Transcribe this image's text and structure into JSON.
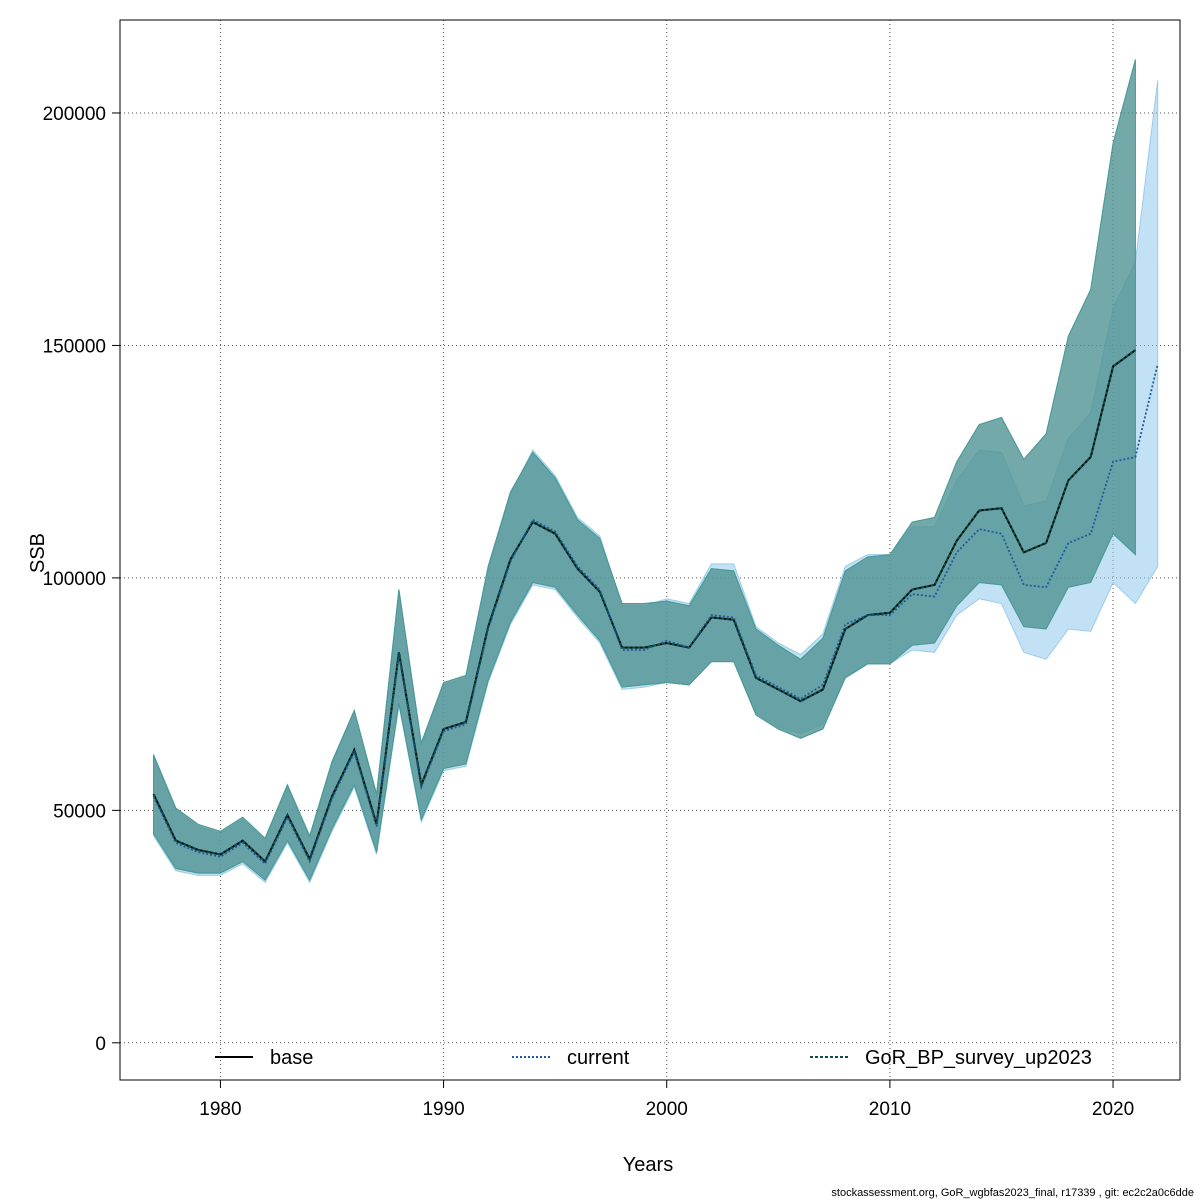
{
  "chart_data": {
    "type": "line",
    "xlabel": "Years",
    "ylabel": "SSB",
    "xlim": [
      1975.5,
      2023
    ],
    "ylim": [
      -8000,
      220000
    ],
    "x_ticks": [
      1980,
      1990,
      2000,
      2010,
      2020
    ],
    "y_ticks": [
      0,
      50000,
      100000,
      150000,
      200000
    ],
    "x_tick_labels": [
      "1980",
      "1990",
      "2000",
      "2010",
      "2020"
    ],
    "y_tick_labels": [
      "0",
      "50000",
      "100000",
      "150000",
      "200000"
    ],
    "grid": true,
    "legend_position": "bottom",
    "footer": "stockassessment.org, GoR_wgbfas2023_final, r17339 , git: ec2c2a0c6dde",
    "series": [
      {
        "name": "base",
        "color": "#000000",
        "dash": "solid",
        "band_color": "#7f7f7f",
        "years": [
          1977,
          1978,
          1979,
          1980,
          1981,
          1982,
          1983,
          1984,
          1985,
          1986,
          1987,
          1988,
          1989,
          1990,
          1991,
          1992,
          1993,
          1994,
          1995,
          1996,
          1997,
          1998,
          1999,
          2000,
          2001,
          2002,
          2003,
          2004,
          2005,
          2006,
          2007,
          2008,
          2009,
          2010,
          2011,
          2012,
          2013,
          2014,
          2015,
          2016,
          2017,
          2018,
          2019,
          2020,
          2021
        ],
        "values": [
          53500,
          43500,
          41500,
          40500,
          43500,
          39000,
          49000,
          39500,
          53000,
          63000,
          47000,
          84000,
          55500,
          67500,
          69000,
          89500,
          104000,
          112000,
          109500,
          102000,
          97000,
          85000,
          85000,
          86000,
          85000,
          91500,
          91000,
          78500,
          76000,
          73500,
          76000,
          89000,
          92000,
          92500,
          97500,
          98500,
          108000,
          114500,
          115000,
          105500,
          107500,
          121000,
          126000,
          145500,
          149000
        ],
        "upper": [
          62000,
          50500,
          47000,
          45500,
          48500,
          44000,
          55500,
          44500,
          60500,
          71500,
          53500,
          97500,
          64500,
          77500,
          79000,
          102500,
          118500,
          127000,
          121500,
          112500,
          108500,
          94500,
          94500,
          95000,
          94000,
          102000,
          101500,
          89000,
          85500,
          82500,
          87000,
          101500,
          104500,
          105000,
          112000,
          113000,
          125000,
          133000,
          134500,
          125500,
          131000,
          152000,
          162000,
          193500,
          211500
        ],
        "lower": [
          45000,
          37500,
          36500,
          36500,
          39000,
          35000,
          43500,
          35000,
          46000,
          55500,
          41000,
          73000,
          48000,
          59000,
          60000,
          78000,
          90500,
          99000,
          98000,
          92000,
          86500,
          76500,
          77000,
          77500,
          77000,
          82000,
          82000,
          70500,
          67500,
          65500,
          67500,
          78500,
          81500,
          81500,
          85500,
          86000,
          94000,
          99000,
          98500,
          89500,
          89000,
          98000,
          99000,
          109500,
          105000
        ]
      },
      {
        "name": "current",
        "color": "#1f5a9c",
        "dash": "dotted",
        "band_color": "#87c4ea",
        "years": [
          1977,
          1978,
          1979,
          1980,
          1981,
          1982,
          1983,
          1984,
          1985,
          1986,
          1987,
          1988,
          1989,
          1990,
          1991,
          1992,
          1993,
          1994,
          1995,
          1996,
          1997,
          1998,
          1999,
          2000,
          2001,
          2002,
          2003,
          2004,
          2005,
          2006,
          2007,
          2008,
          2009,
          2010,
          2011,
          2012,
          2013,
          2014,
          2015,
          2016,
          2017,
          2018,
          2019,
          2020,
          2021,
          2022
        ],
        "values": [
          53000,
          43000,
          41000,
          40000,
          43000,
          38500,
          48500,
          39000,
          52500,
          62500,
          46500,
          83500,
          55000,
          67000,
          68500,
          89000,
          103500,
          112500,
          110000,
          102500,
          97500,
          84500,
          84500,
          86500,
          85000,
          92000,
          91500,
          79000,
          76500,
          74000,
          77000,
          90000,
          92000,
          92000,
          96500,
          96000,
          105500,
          110500,
          109500,
          98500,
          98000,
          107500,
          109500,
          125000,
          126000,
          146000
        ],
        "upper": [
          61500,
          50000,
          46500,
          45000,
          48000,
          43500,
          55000,
          44000,
          60000,
          71000,
          53000,
          97000,
          64000,
          77000,
          78500,
          102000,
          118000,
          127500,
          122000,
          113000,
          109000,
          94000,
          94000,
          95500,
          94500,
          103000,
          103000,
          89500,
          86000,
          83500,
          88000,
          102500,
          105000,
          105000,
          111000,
          111000,
          121000,
          127500,
          127000,
          115500,
          116500,
          130000,
          135500,
          158000,
          168000,
          207000
        ],
        "lower": [
          44500,
          37000,
          36000,
          36000,
          38500,
          34500,
          43000,
          34500,
          45500,
          55000,
          40500,
          72500,
          47500,
          58500,
          59500,
          77500,
          90000,
          98500,
          97500,
          91500,
          86000,
          76000,
          76500,
          77500,
          77000,
          82000,
          82000,
          71000,
          68000,
          66500,
          68500,
          79000,
          81500,
          81500,
          84500,
          84000,
          92000,
          95500,
          94500,
          84000,
          82500,
          89000,
          88500,
          99000,
          94500,
          102500
        ]
      },
      {
        "name": "GoR_BP_survey_up2023",
        "color": "#0b4f4a",
        "dash": "dashed",
        "band_color": "#3a9d9a",
        "years": [
          1977,
          1978,
          1979,
          1980,
          1981,
          1982,
          1983,
          1984,
          1985,
          1986,
          1987,
          1988,
          1989,
          1990,
          1991,
          1992,
          1993,
          1994,
          1995,
          1996,
          1997,
          1998,
          1999,
          2000,
          2001,
          2002,
          2003,
          2004,
          2005,
          2006,
          2007,
          2008,
          2009,
          2010,
          2011,
          2012,
          2013,
          2014,
          2015,
          2016,
          2017,
          2018,
          2019,
          2020,
          2021
        ],
        "values": [
          53500,
          43500,
          41500,
          40500,
          43500,
          39000,
          49000,
          39500,
          53000,
          63000,
          47000,
          84000,
          55500,
          67500,
          69000,
          89500,
          104000,
          112000,
          109500,
          102000,
          97000,
          85000,
          85000,
          86000,
          85000,
          91500,
          91000,
          78500,
          76000,
          73500,
          76000,
          89000,
          92000,
          92500,
          97500,
          98500,
          108000,
          114500,
          115000,
          105500,
          107500,
          121000,
          126000,
          145500,
          149000
        ],
        "upper": [
          62000,
          50500,
          47000,
          45500,
          48500,
          44000,
          55500,
          44500,
          60500,
          71500,
          53500,
          97500,
          64500,
          77500,
          79000,
          102500,
          118500,
          127000,
          121500,
          112500,
          108500,
          94500,
          94500,
          95000,
          94000,
          102000,
          101500,
          89000,
          85500,
          82500,
          87000,
          101500,
          104500,
          105000,
          112000,
          113000,
          125000,
          133000,
          134500,
          125500,
          131000,
          152000,
          162000,
          193500,
          211500
        ],
        "lower": [
          45000,
          37500,
          36500,
          36500,
          39000,
          35000,
          43500,
          35000,
          46000,
          55500,
          41000,
          73000,
          48000,
          59000,
          60000,
          78000,
          90500,
          99000,
          98000,
          92000,
          86500,
          76500,
          77000,
          77500,
          77000,
          82000,
          82000,
          70500,
          67500,
          65500,
          67500,
          78500,
          81500,
          81500,
          85500,
          86000,
          94000,
          99000,
          98500,
          89500,
          89000,
          98000,
          99000,
          109500,
          105000
        ]
      }
    ]
  }
}
